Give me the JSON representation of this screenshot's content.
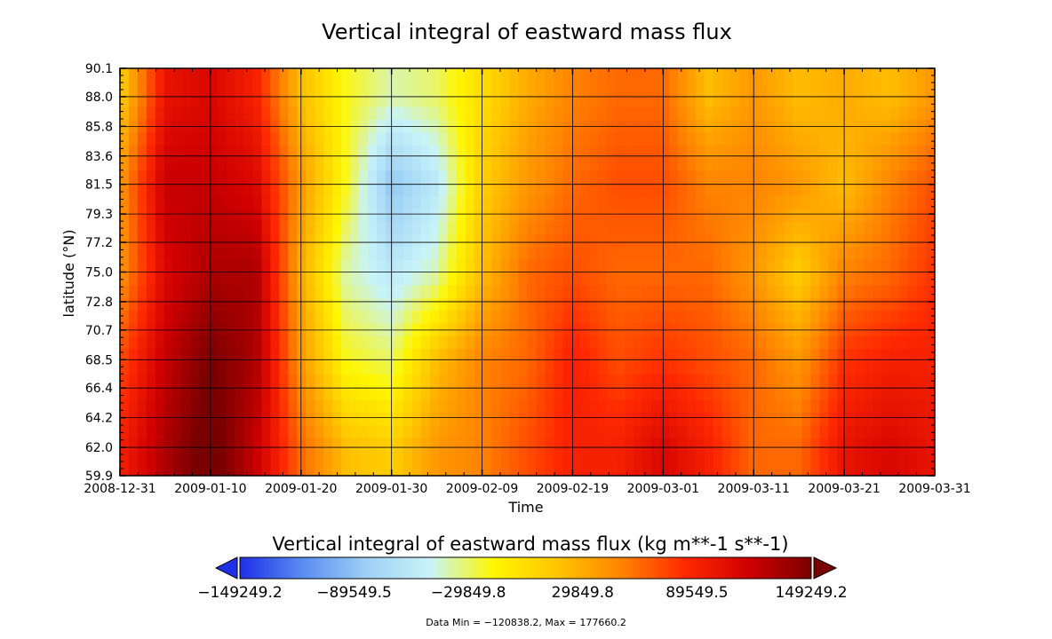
{
  "title": "Vertical integral of eastward mass flux",
  "chart_data": {
    "type": "heatmap",
    "title": "Vertical integral of eastward mass flux",
    "xlabel": "Time",
    "ylabel": "latitude (°N)",
    "x_ticks": [
      "2008-12-31",
      "2009-01-10",
      "2009-01-20",
      "2009-01-30",
      "2009-02-09",
      "2009-02-19",
      "2009-03-01",
      "2009-03-11",
      "2009-03-21",
      "2009-03-31"
    ],
    "y_ticks": [
      "59.9",
      "62.0",
      "64.2",
      "66.4",
      "68.5",
      "70.7",
      "72.8",
      "75.0",
      "77.2",
      "79.3",
      "81.5",
      "83.6",
      "85.8",
      "88.0",
      "90.1"
    ],
    "xlim": [
      "2008-12-31",
      "2009-03-31"
    ],
    "ylim": [
      59.9,
      90.1
    ],
    "grid": true,
    "z_units": "kg m**-1 s**-1",
    "colorbar": {
      "title": "Vertical integral of eastward mass flux (kg m**-1 s**-1)",
      "ticks": [
        "-149249.2",
        "-89549.5",
        "-29849.8",
        "29849.8",
        "89549.5",
        "149249.2"
      ],
      "colors": [
        "#1e2fe6",
        "#5a8ef2",
        "#9ed0f5",
        "#c8f4f8",
        "#fff600",
        "#ffc400",
        "#ff8400",
        "#ff2a00",
        "#d00000",
        "#7a0000"
      ],
      "under_color": "#1e2fe6",
      "over_color": "#7a0000"
    },
    "time_columns": [
      "2008-12-31",
      "2009-01-05",
      "2009-01-10",
      "2009-01-15",
      "2009-01-20",
      "2009-01-25",
      "2009-01-30",
      "2009-02-04",
      "2009-02-09",
      "2009-02-14",
      "2009-02-19",
      "2009-02-24",
      "2009-03-01",
      "2009-03-06",
      "2009-03-11",
      "2009-03-16",
      "2009-03-21",
      "2009-03-26",
      "2009-03-31"
    ],
    "latitude_rows": [
      62.0,
      68.5,
      75.0,
      81.5,
      88.0
    ],
    "values": [
      [
        90000,
        130000,
        160000,
        120000,
        60000,
        20000,
        10000,
        40000,
        50000,
        70000,
        90000,
        90000,
        110000,
        90000,
        60000,
        60000,
        100000,
        110000,
        100000
      ],
      [
        70000,
        120000,
        150000,
        130000,
        40000,
        -20000,
        -30000,
        20000,
        50000,
        60000,
        90000,
        70000,
        80000,
        70000,
        60000,
        40000,
        80000,
        90000,
        90000
      ],
      [
        40000,
        110000,
        130000,
        130000,
        30000,
        -40000,
        -60000,
        -40000,
        20000,
        60000,
        70000,
        60000,
        60000,
        60000,
        40000,
        10000,
        50000,
        60000,
        80000
      ],
      [
        40000,
        120000,
        120000,
        110000,
        40000,
        -20000,
        -90000,
        -60000,
        10000,
        40000,
        60000,
        70000,
        70000,
        50000,
        50000,
        40000,
        20000,
        50000,
        70000
      ],
      [
        10000,
        100000,
        110000,
        90000,
        20000,
        -20000,
        -40000,
        -30000,
        0,
        30000,
        50000,
        60000,
        60000,
        20000,
        40000,
        20000,
        30000,
        20000,
        40000
      ]
    ],
    "footer": "Data Min = −120838.2, Max = 177660.2"
  }
}
